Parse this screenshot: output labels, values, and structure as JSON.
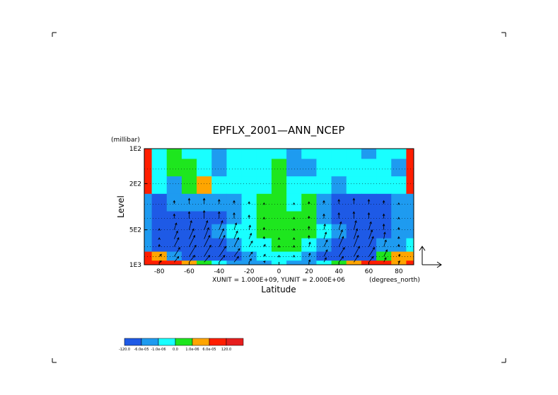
{
  "chart_data": {
    "type": "heatmap",
    "title": "EPFLX_2001—ANN_NCEP",
    "xlabel": "Latitude",
    "x_units": "(degrees_north)",
    "ylabel": "Level",
    "y_units": "(millibar)",
    "xlim": [
      -90,
      90
    ],
    "ylim": [
      1000,
      100
    ],
    "y_scale": "log",
    "x_ticks": [
      "-80",
      "-60",
      "-40",
      "-20",
      "0",
      "20",
      "40",
      "60",
      "80"
    ],
    "x_tick_values": [
      -80,
      -60,
      -40,
      -20,
      0,
      20,
      40,
      60,
      80
    ],
    "y_ticks": [
      "1E2",
      "2E2",
      "5E2",
      "1E3"
    ],
    "y_tick_values": [
      100,
      200,
      500,
      1000
    ],
    "vector_units": "XUNIT = 1.000E+09, YUNIT = 2.000E+06",
    "grid": true,
    "legend": "bottom-left",
    "colorbar": {
      "labels": [
        "-120.0",
        "-6.0e-05",
        "-1.0e-06",
        "0.0",
        "1.0e-06",
        "6.0e-05",
        "120.0"
      ],
      "colors": [
        "#1e5ae6",
        "#1e9bf0",
        "#19ffff",
        "#1ee61e",
        "#ffa500",
        "#ff1e00",
        "#e61e1e"
      ]
    },
    "field_classes": [
      "#1e5ae6",
      "#1e9bf0",
      "#19ffff",
      "#1ee61e",
      "#ffa500",
      "#ff1e00"
    ],
    "field": {
      "lat": [
        -90,
        -80,
        -70,
        -60,
        -50,
        -40,
        -30,
        -20,
        -10,
        0,
        10,
        20,
        30,
        40,
        50,
        60,
        70,
        80,
        90
      ],
      "lev": [
        100,
        150,
        200,
        300,
        400,
        500,
        700,
        850,
        1000
      ],
      "class": [
        [
          5,
          2,
          3,
          2,
          2,
          1,
          2,
          2,
          2,
          2,
          1,
          2,
          2,
          2,
          2,
          1,
          2,
          2,
          5
        ],
        [
          5,
          2,
          3,
          3,
          2,
          1,
          2,
          2,
          2,
          3,
          1,
          1,
          2,
          2,
          2,
          2,
          2,
          1,
          5
        ],
        [
          5,
          2,
          1,
          3,
          4,
          2,
          2,
          2,
          2,
          3,
          2,
          2,
          2,
          1,
          2,
          2,
          2,
          2,
          5
        ],
        [
          1,
          0,
          1,
          1,
          1,
          1,
          1,
          2,
          3,
          3,
          2,
          3,
          1,
          0,
          0,
          0,
          0,
          1,
          1
        ],
        [
          1,
          0,
          0,
          0,
          0,
          0,
          1,
          2,
          3,
          3,
          3,
          3,
          1,
          0,
          0,
          0,
          0,
          1,
          1
        ],
        [
          1,
          0,
          0,
          0,
          0,
          1,
          2,
          2,
          3,
          3,
          3,
          3,
          2,
          1,
          0,
          0,
          0,
          1,
          1
        ],
        [
          1,
          0,
          0,
          0,
          0,
          0,
          1,
          2,
          2,
          3,
          3,
          2,
          1,
          0,
          0,
          0,
          1,
          1,
          2
        ],
        [
          5,
          4,
          1,
          0,
          0,
          0,
          0,
          1,
          2,
          2,
          2,
          1,
          0,
          0,
          0,
          0,
          3,
          4,
          4
        ],
        [
          5,
          5,
          5,
          4,
          3,
          2,
          1,
          1,
          1,
          2,
          1,
          1,
          2,
          3,
          4,
          5,
          5,
          4,
          5
        ]
      ]
    },
    "vectors": {
      "lat": [
        -80,
        -70,
        -60,
        -50,
        -40,
        -30,
        -20,
        -10,
        0,
        10,
        20,
        30,
        40,
        50,
        60,
        70,
        80
      ],
      "lev": [
        300,
        400,
        500,
        600,
        700,
        850,
        950
      ],
      "u": [
        [
          0,
          0,
          0,
          0,
          0,
          0,
          0,
          0,
          0,
          0,
          0,
          0,
          0,
          0,
          0,
          0,
          0
        ],
        [
          0,
          0,
          0,
          0,
          0,
          0,
          0,
          0,
          0,
          0,
          0,
          0,
          0,
          0,
          0,
          0,
          0
        ],
        [
          0,
          0.2,
          0.2,
          0.3,
          0.3,
          0.2,
          0.1,
          0,
          0,
          0,
          0,
          0.1,
          0.2,
          0.2,
          0.2,
          0,
          0
        ],
        [
          0,
          0.3,
          0.4,
          0.4,
          0.4,
          0.3,
          0.2,
          0,
          0,
          0,
          0,
          0.2,
          0.3,
          0.3,
          0.3,
          0.1,
          0
        ],
        [
          0,
          0.4,
          0.5,
          0.5,
          0.5,
          0.4,
          0.3,
          0.1,
          0,
          0,
          0.1,
          0.3,
          0.4,
          0.4,
          0.4,
          0.2,
          0
        ],
        [
          0.2,
          0.5,
          0.6,
          0.6,
          0.6,
          0.5,
          0.3,
          0.1,
          0,
          0,
          0.1,
          0.3,
          0.5,
          0.5,
          0.5,
          0.3,
          0.1
        ],
        [
          0.2,
          0.4,
          0.5,
          0.5,
          0.5,
          0.4,
          0.2,
          0.1,
          0,
          0,
          0.1,
          0.2,
          0.4,
          0.4,
          0.4,
          0.2,
          0.1
        ]
      ],
      "v": [
        [
          0,
          0.3,
          0.5,
          0.5,
          0.4,
          0.3,
          0.2,
          0.1,
          0,
          0.1,
          0.2,
          0.3,
          0.4,
          0.5,
          0.4,
          0.3,
          0.1
        ],
        [
          0,
          0.4,
          0.6,
          0.7,
          0.6,
          0.5,
          0.3,
          0.1,
          0,
          0.1,
          0.2,
          0.4,
          0.5,
          0.6,
          0.5,
          0.4,
          0.1
        ],
        [
          0.1,
          0.6,
          0.8,
          0.8,
          0.8,
          0.6,
          0.4,
          0.2,
          0,
          0.1,
          0.3,
          0.5,
          0.7,
          0.8,
          0.7,
          0.5,
          0.2
        ],
        [
          0.1,
          0.7,
          0.9,
          1.0,
          0.9,
          0.7,
          0.5,
          0.2,
          0.1,
          0.1,
          0.3,
          0.6,
          0.8,
          0.9,
          0.8,
          0.6,
          0.2
        ],
        [
          0.2,
          0.8,
          1.0,
          1.0,
          1.0,
          0.8,
          0.5,
          0.2,
          0.1,
          0.1,
          0.4,
          0.6,
          0.9,
          1.0,
          0.9,
          0.6,
          0.2
        ],
        [
          0.2,
          0.8,
          1.0,
          1.0,
          0.9,
          0.7,
          0.4,
          0.2,
          0.1,
          0.1,
          0.3,
          0.6,
          0.8,
          0.9,
          0.8,
          0.6,
          0.2
        ],
        [
          0.1,
          0.5,
          0.6,
          0.6,
          0.6,
          0.5,
          0.3,
          0.1,
          0,
          0,
          0.2,
          0.4,
          0.5,
          0.6,
          0.5,
          0.4,
          0.1
        ]
      ]
    }
  }
}
